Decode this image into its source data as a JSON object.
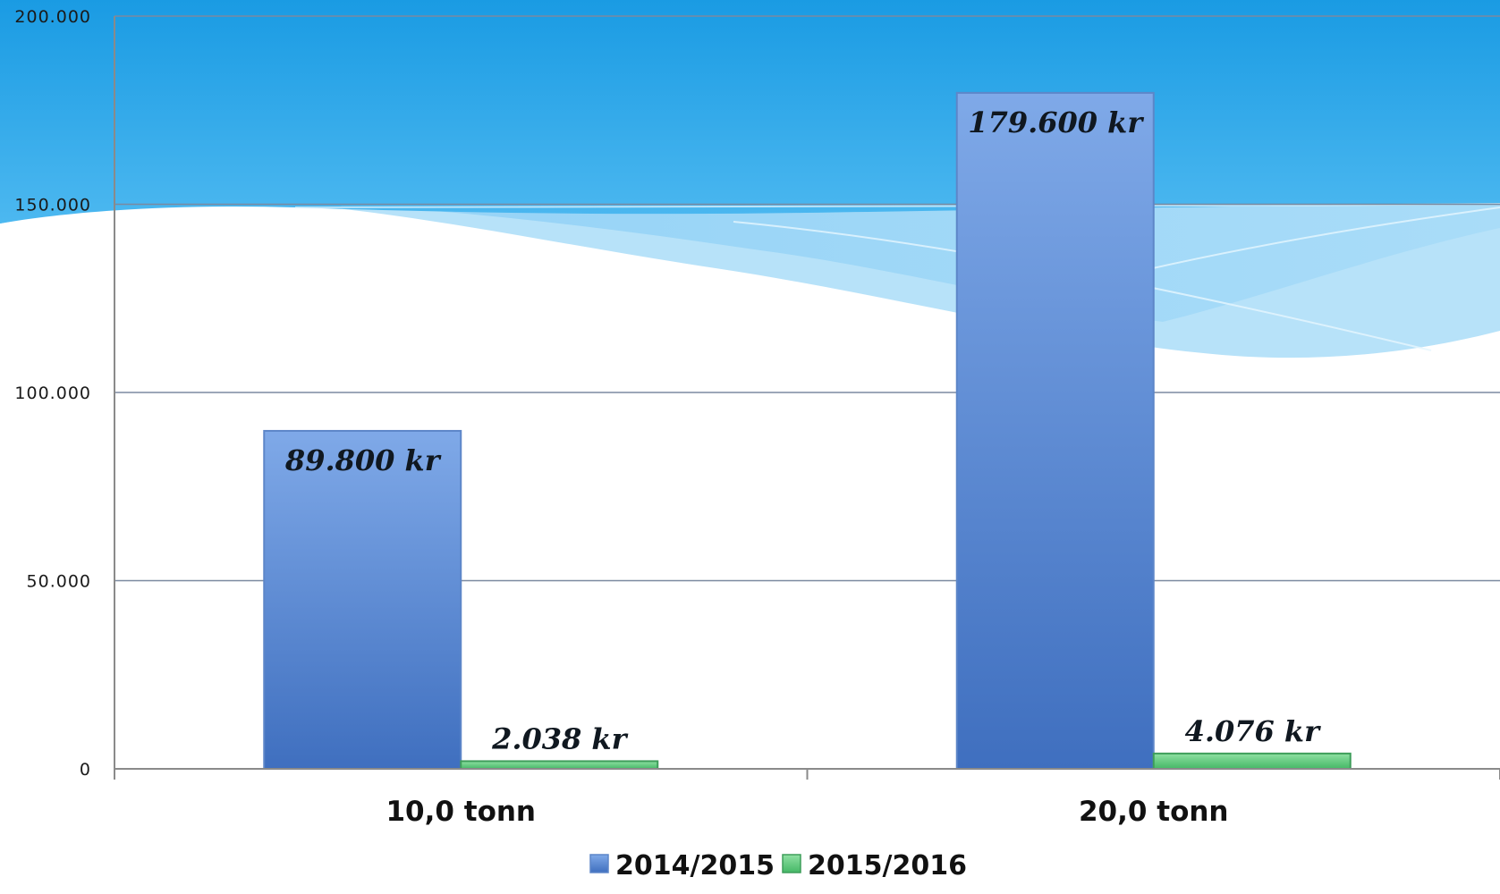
{
  "chart_data": {
    "type": "bar",
    "categories": [
      "10,0 tonn",
      "20,0 tonn"
    ],
    "series": [
      {
        "name": "2014/2015",
        "values": [
          89800,
          179600
        ],
        "labels": [
          "89.800 kr",
          "179.600 kr"
        ],
        "color": "#4a7cc9"
      },
      {
        "name": "2015/2016",
        "values": [
          2038,
          4076
        ],
        "labels": [
          "2.038 kr",
          "4.076 kr"
        ],
        "color": "#5cc97a"
      }
    ],
    "ylim": [
      0,
      200000
    ],
    "yticks": [
      0,
      50000,
      100000,
      150000,
      200000
    ],
    "ytick_labels": [
      "0",
      "50.000",
      "100.000",
      "150.000",
      "200.000"
    ],
    "grid": true,
    "legend_position": "bottom",
    "title": "",
    "xlabel": "",
    "ylabel": ""
  }
}
